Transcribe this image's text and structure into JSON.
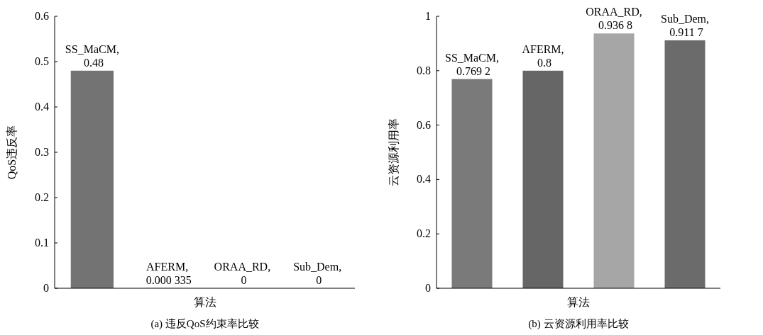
{
  "chart_data": [
    {
      "type": "bar",
      "xlabel": "算法",
      "ylabel": "QoS违反率",
      "annotations": [
        "(a) 违反QoS约束率比较"
      ],
      "categories": [
        null,
        null,
        null,
        null
      ],
      "values": [
        0.48,
        0.000335,
        0,
        0
      ],
      "value_labels": [
        "SS_MaCM, 0.48",
        "AFERM, 0.000 335",
        "ORAA_RD, 0",
        "Sub_Dem, 0"
      ],
      "colors": [
        "#737373",
        "#666666",
        "#a6a6a6",
        "#6b6b6b"
      ],
      "ylim": [
        0,
        0.6
      ],
      "yticks": [
        0,
        0.1,
        0.2,
        0.3,
        0.4,
        0.5,
        0.6
      ]
    },
    {
      "type": "bar",
      "xlabel": "算法",
      "ylabel": "云资源利用率",
      "annotations": [
        "(b) 云资源利用率比较"
      ],
      "categories": [
        null,
        null,
        null,
        null
      ],
      "values": [
        0.7692,
        0.8,
        0.9368,
        0.9117
      ],
      "value_labels": [
        "SS_MaCM, 0.769 2",
        "AFERM, 0.8",
        "ORAA_RD, 0.936 8",
        "Sub_Dem, 0.911 7"
      ],
      "colors": [
        "#7a7a7a",
        "#666666",
        "#a6a6a6",
        "#6b6b6b"
      ],
      "ylim": [
        0,
        1
      ],
      "yticks": [
        0,
        0.2,
        0.4,
        0.6,
        0.8,
        1
      ]
    }
  ]
}
